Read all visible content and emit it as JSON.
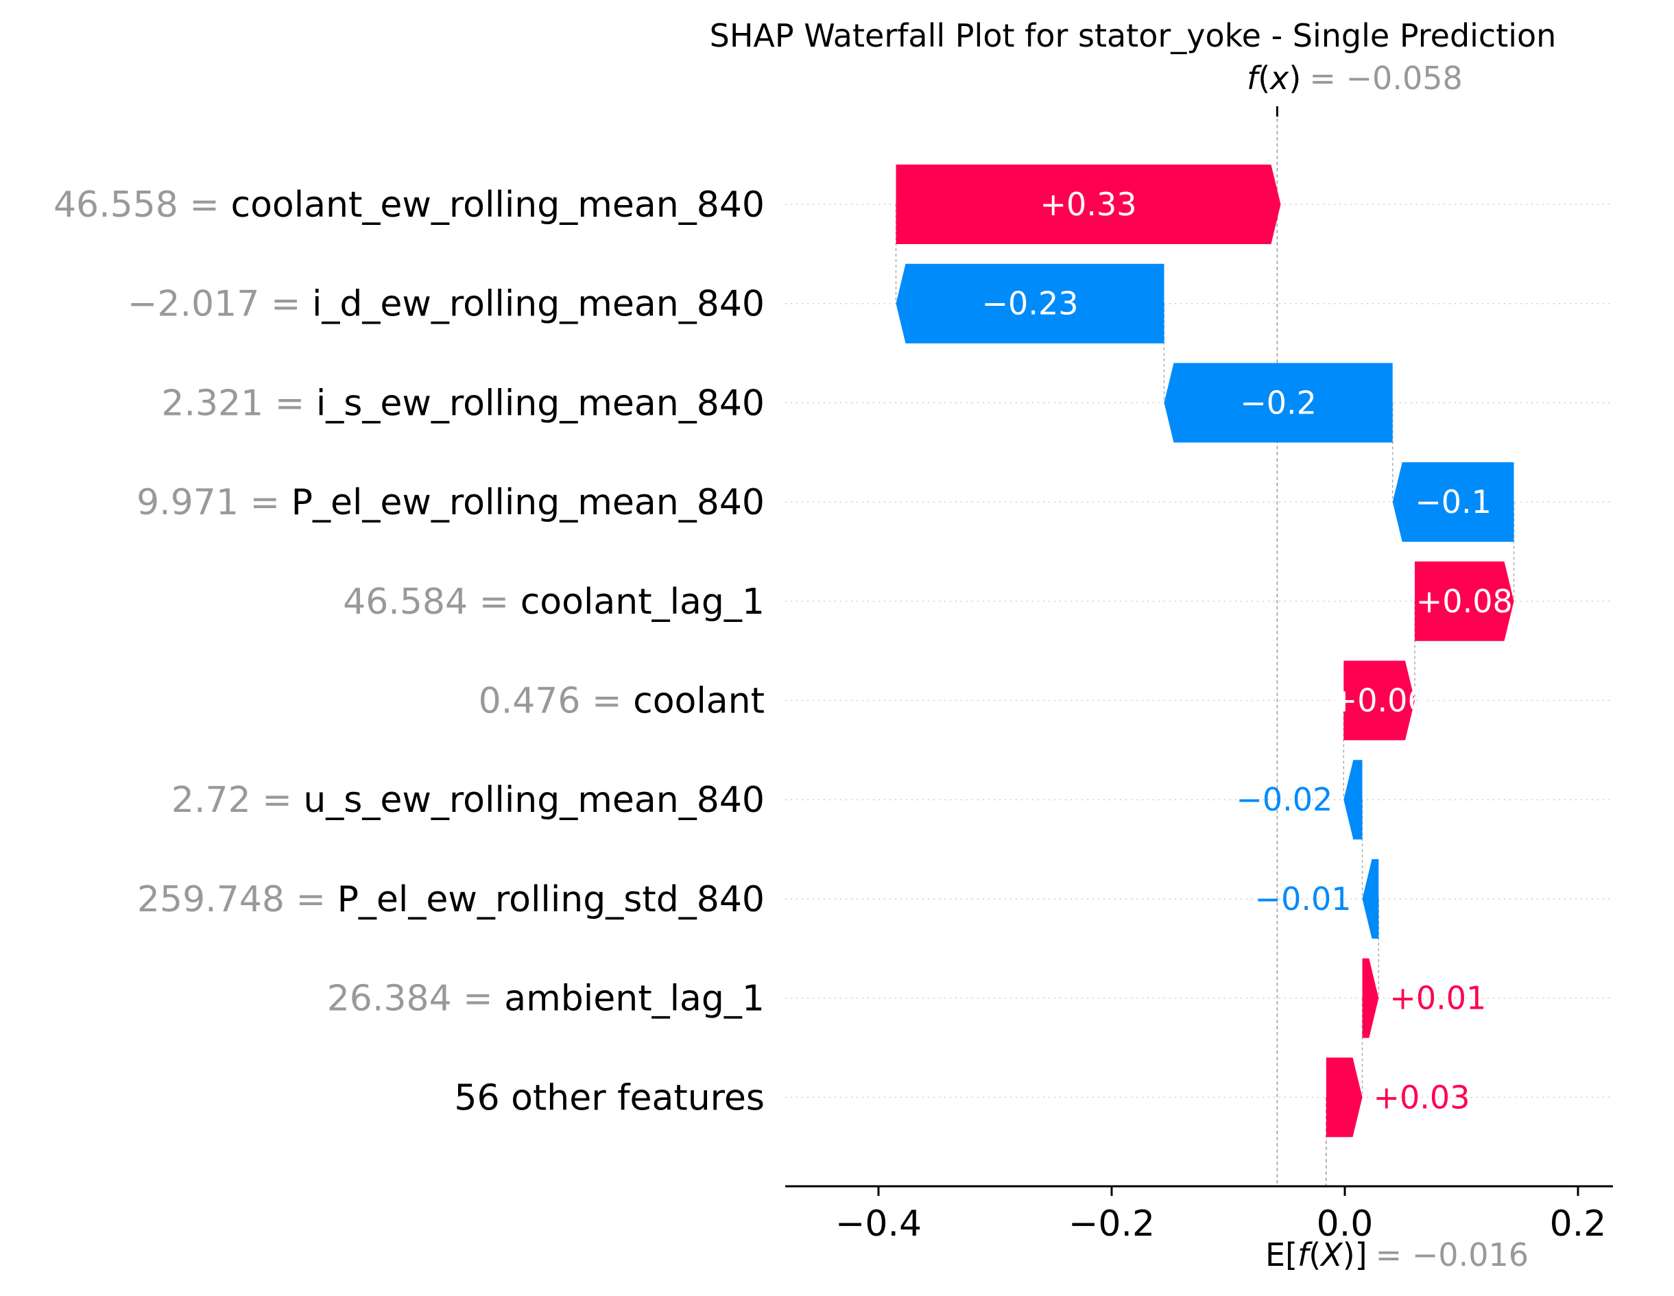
{
  "chart_data": {
    "type": "bar",
    "title": "SHAP Waterfall Plot for stator_yoke - Single Prediction",
    "fx": {
      "label": "f(x)",
      "value": "−0.058",
      "numeric": -0.058
    },
    "base": {
      "label": "E[f(X)]",
      "value": "−0.016",
      "numeric": -0.016
    },
    "xlim": [
      -0.48,
      0.23
    ],
    "xticks": [
      {
        "value": -0.4,
        "label": "−0.4"
      },
      {
        "value": -0.2,
        "label": "−0.2"
      },
      {
        "value": 0.0,
        "label": "0.0"
      },
      {
        "value": 0.2,
        "label": "0.2"
      }
    ],
    "features": [
      {
        "value": "46.558",
        "eq": " = ",
        "name": "coolant_ew_rolling_mean_840",
        "contribution": 0.33,
        "label": "+0.33"
      },
      {
        "value": "−2.017",
        "eq": " = ",
        "name": "i_d_ew_rolling_mean_840",
        "contribution": -0.23,
        "label": "−0.23"
      },
      {
        "value": "2.321",
        "eq": " = ",
        "name": "i_s_ew_rolling_mean_840",
        "contribution": -0.196,
        "label": "−0.2"
      },
      {
        "value": "9.971",
        "eq": " = ",
        "name": "P_el_ew_rolling_mean_840",
        "contribution": -0.104,
        "label": "−0.1"
      },
      {
        "value": "46.584",
        "eq": " = ",
        "name": "coolant_lag_1",
        "contribution": 0.085,
        "label": "+0.08"
      },
      {
        "value": "0.476",
        "eq": " = ",
        "name": "coolant",
        "contribution": 0.061,
        "label": "+0.06"
      },
      {
        "value": "2.72",
        "eq": " = ",
        "name": "u_s_ew_rolling_mean_840",
        "contribution": -0.016,
        "label": "−0.02"
      },
      {
        "value": "259.748",
        "eq": " = ",
        "name": "P_el_ew_rolling_std_840",
        "contribution": -0.014,
        "label": "−0.01"
      },
      {
        "value": "26.384",
        "eq": " = ",
        "name": "ambient_lag_1",
        "contribution": 0.014,
        "label": "+0.01"
      },
      {
        "value": "",
        "eq": "",
        "name": "56 other features",
        "contribution": 0.031,
        "label": "+0.03"
      }
    ],
    "colors": {
      "positive": "#ff0051",
      "negative": "#008bfb",
      "value_text": "#999999",
      "bar_text": "#ffffff"
    }
  }
}
